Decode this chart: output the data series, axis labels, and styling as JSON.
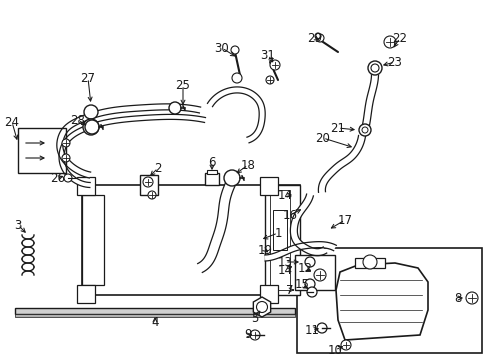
{
  "bg_color": "#ffffff",
  "fig_width": 4.89,
  "fig_height": 3.6,
  "dpi": 100,
  "line_color": "#1a1a1a",
  "font_size": 8.5,
  "font_size_small": 7.0
}
